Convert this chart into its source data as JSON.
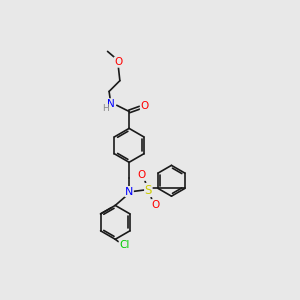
{
  "background_color": "#e8e8e8",
  "figsize": [
    3.0,
    3.0
  ],
  "dpi": 100,
  "bond_color": "#1a1a1a",
  "bond_lw": 1.2,
  "atom_colors": {
    "N": "#0000ff",
    "O": "#ff0000",
    "S": "#cccc00",
    "Cl": "#00cc00",
    "H": "#888888",
    "C": "#1a1a1a"
  }
}
